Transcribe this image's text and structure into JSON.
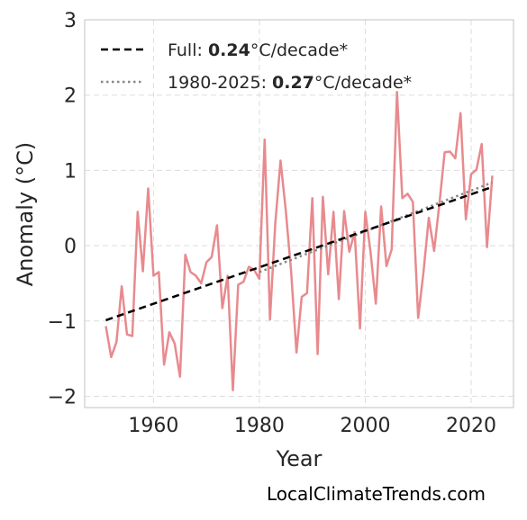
{
  "chart_data": {
    "type": "line",
    "xlabel": "Year",
    "ylabel": "Anomaly (°C)",
    "xlim": [
      1947,
      2028
    ],
    "ylim": [
      -2.15,
      3.0
    ],
    "xticks": [
      1960,
      1980,
      2000,
      2020
    ],
    "yticks": [
      -2,
      -1,
      0,
      1,
      2,
      3
    ],
    "ytick_labels": [
      "−2",
      "−1",
      "0",
      "1",
      "2",
      "3"
    ],
    "grid": true,
    "legend_position": "top-left",
    "legend": [
      {
        "prefix": "Full: ",
        "value": "0.24",
        "suffix": "°C/decade*"
      },
      {
        "prefix": "1980-2025: ",
        "value": "0.27",
        "suffix": "°C/decade*"
      }
    ],
    "colors": {
      "anomaly": "#e88a8e",
      "full_trend": "#000000",
      "recent_trend": "#888888",
      "grid": "#dddddd",
      "frame": "#cccccc"
    },
    "series": [
      {
        "x": [
          1951,
          1952,
          1953,
          1954,
          1955,
          1956,
          1957,
          1958,
          1959,
          1960,
          1961,
          1962,
          1963,
          1964,
          1965,
          1966,
          1967,
          1968,
          1969,
          1970,
          1971,
          1972,
          1973,
          1974,
          1975,
          1976,
          1977,
          1978,
          1979,
          1980,
          1981,
          1982,
          1983,
          1984,
          1985,
          1986,
          1987,
          1988,
          1989,
          1990,
          1991,
          1992,
          1993,
          1994,
          1995,
          1996,
          1997,
          1998,
          1999,
          2000,
          2001,
          2002,
          2003,
          2004,
          2005,
          2006,
          2007,
          2008,
          2009,
          2010,
          2011,
          2012,
          2013,
          2014,
          2015,
          2016,
          2017,
          2018,
          2019,
          2020,
          2021,
          2022,
          2023,
          2024
        ],
        "y": [
          -1.07,
          -1.48,
          -1.28,
          -0.54,
          -1.18,
          -1.2,
          0.45,
          -0.34,
          0.76,
          -0.4,
          -0.35,
          -1.58,
          -1.15,
          -1.3,
          -1.74,
          -0.12,
          -0.35,
          -0.4,
          -0.5,
          -0.22,
          -0.15,
          0.27,
          -0.83,
          -0.4,
          -1.92,
          -0.52,
          -0.48,
          -0.28,
          -0.32,
          -0.44,
          1.41,
          -0.98,
          0.3,
          1.13,
          0.46,
          -0.35,
          -1.42,
          -0.68,
          -0.63,
          0.63,
          -1.44,
          0.65,
          -0.38,
          0.45,
          -0.71,
          0.46,
          -0.08,
          0.18,
          -1.1,
          0.45,
          -0.08,
          -0.77,
          0.52,
          -0.27,
          -0.05,
          2.04,
          0.63,
          0.69,
          0.58,
          -0.96,
          -0.35,
          0.37,
          -0.07,
          0.55,
          1.24,
          1.25,
          1.16,
          1.76,
          0.35,
          0.95,
          1.01,
          1.35,
          -0.02,
          0.93
        ]
      },
      {
        "x": [
          1951,
          2024
        ],
        "y": [
          -0.99,
          0.78
        ]
      },
      {
        "x": [
          1980,
          2024
        ],
        "y": [
          -0.35,
          0.84
        ]
      }
    ]
  },
  "footer": {
    "attribution": "LocalClimateTrends.com"
  }
}
